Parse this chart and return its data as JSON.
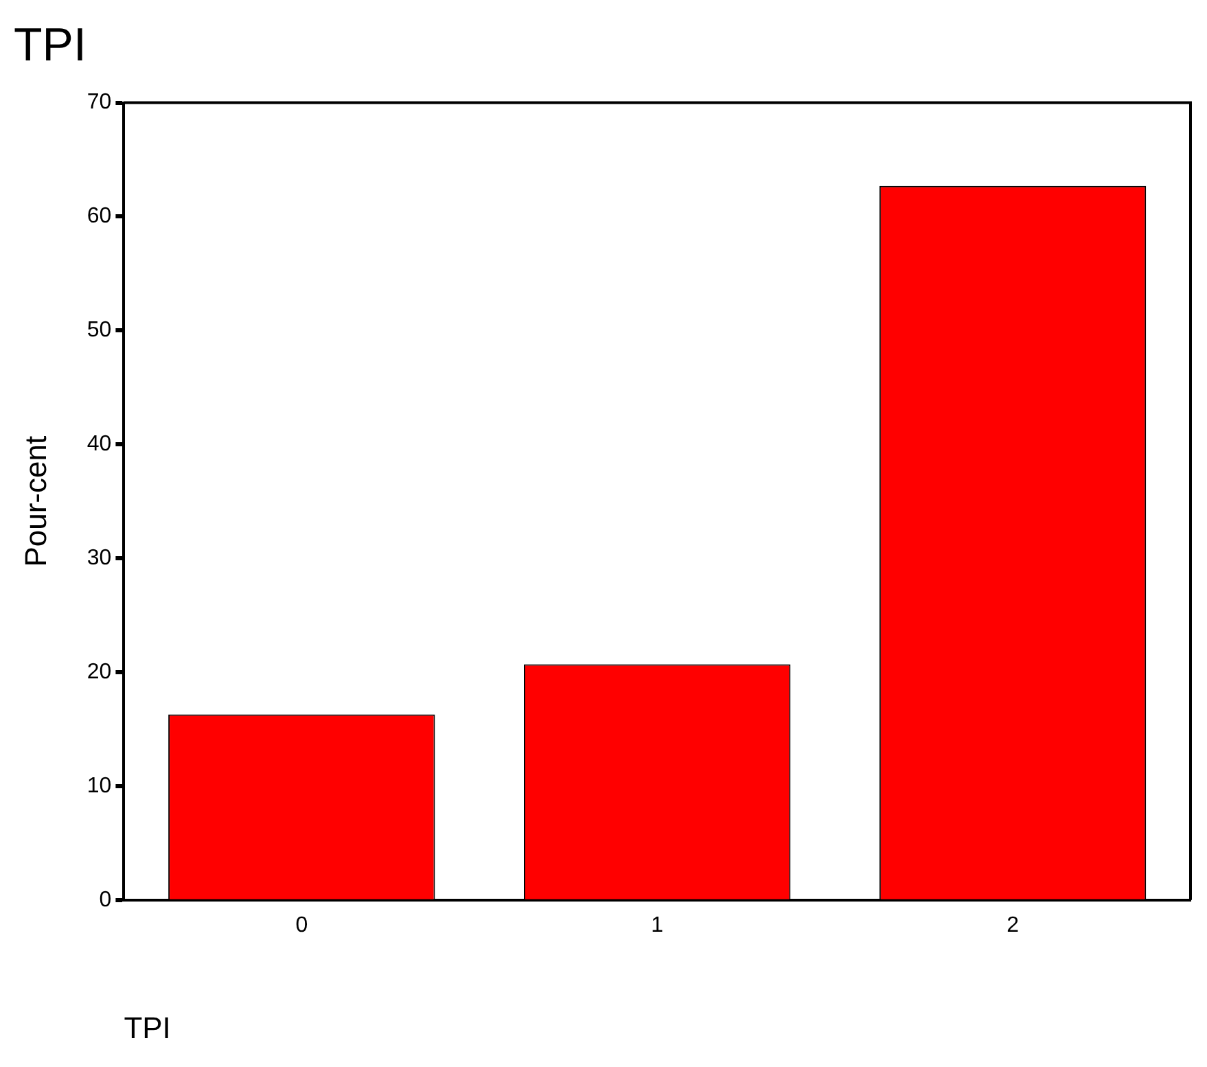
{
  "chart_data": {
    "type": "bar",
    "title": "TPI",
    "xlabel": "TPI",
    "ylabel": "Pour-cent",
    "categories": [
      "0",
      "1",
      "2"
    ],
    "values": [
      16.3,
      20.7,
      62.7
    ],
    "color": "#ff0000",
    "ylim": [
      0,
      70
    ],
    "yticks": [
      0,
      10,
      20,
      30,
      40,
      50,
      60,
      70
    ],
    "grid": false,
    "legend": false
  }
}
